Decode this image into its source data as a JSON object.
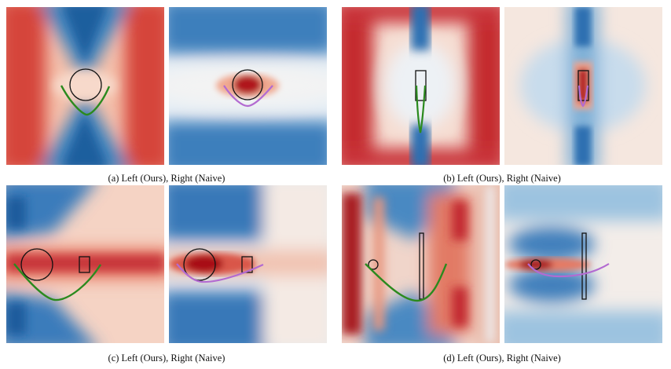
{
  "colors": {
    "red": "#b2182b",
    "blue": "#2166ac",
    "ours_path": "#2b8a1e",
    "naive_path": "#b36bd1",
    "outline": "#111111"
  },
  "figure": {
    "captions": {
      "a": "(a) Left (Ours), Right (Naive)",
      "b": "(b) Left (Ours), Right (Naive)",
      "c": "(c) Left (Ours), Right (Naive)",
      "d": "(d) Left (Ours), Right (Naive)"
    }
  }
}
